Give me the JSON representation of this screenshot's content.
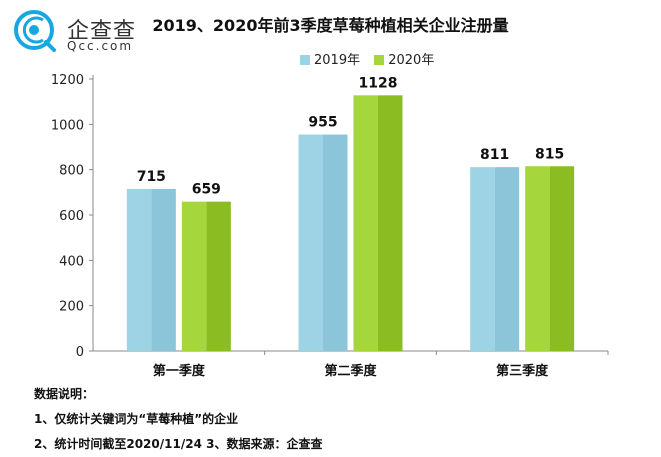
{
  "brand": {
    "name": "企查查",
    "url": "Qcc.com",
    "accent": "#17a7e0"
  },
  "chart_data": {
    "type": "bar",
    "title": "2019、2020年前3季度草莓种植相关企业注册量",
    "categories": [
      "第一季度",
      "第二季度",
      "第三季度"
    ],
    "series": [
      {
        "name": "2019年",
        "values": [
          715,
          955,
          811
        ],
        "color": "#9dd3e4",
        "color_dark": "#8cc5da"
      },
      {
        "name": "2020年",
        "values": [
          659,
          1128,
          815
        ],
        "color": "#a5d63c",
        "color_dark": "#8bbd22"
      }
    ],
    "ylim": [
      0,
      1200
    ],
    "yticks": [
      0,
      200,
      400,
      600,
      800,
      1000,
      1200
    ],
    "grid": false,
    "legend_position": "top-center",
    "xlabel": "",
    "ylabel": ""
  },
  "notes": {
    "heading": "数据说明：",
    "line1": "1、仅统计关键词为“草莓种植”的企业",
    "line2": "2、统计时间截至2020/11/24   3、数据来源：企查查"
  }
}
